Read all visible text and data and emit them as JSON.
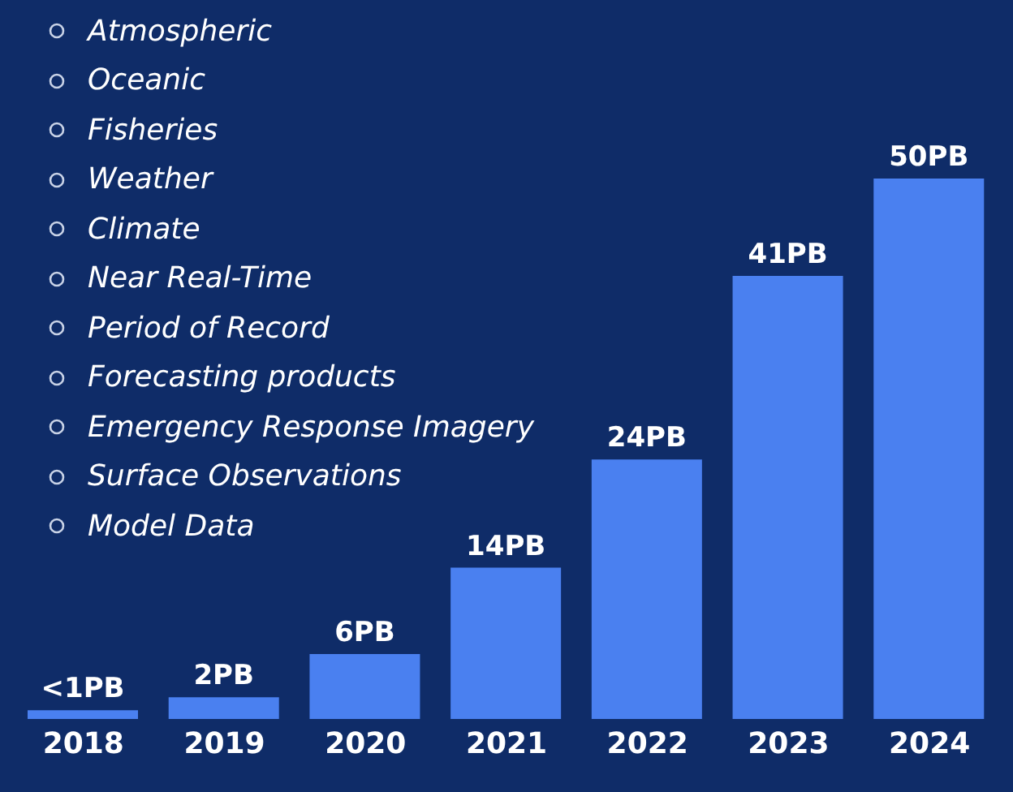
{
  "chart_data": {
    "type": "bar",
    "categories": [
      "2018",
      "2019",
      "2020",
      "2021",
      "2022",
      "2023",
      "2024"
    ],
    "values": [
      0.8,
      2,
      6,
      14,
      24,
      41,
      50
    ],
    "value_labels": [
      "<1PB",
      "2PB",
      "6PB",
      "14PB",
      "24PB",
      "41PB",
      "50PB"
    ],
    "color": "#4a80f0",
    "annotations": [
      "Atmospheric",
      "Oceanic",
      "Fisheries",
      "Weather",
      "Climate",
      "Near Real-Time",
      "Period of Record",
      "Forecasting products",
      "Emergency Response Imagery",
      "Surface Observations",
      "Model Data"
    ]
  }
}
